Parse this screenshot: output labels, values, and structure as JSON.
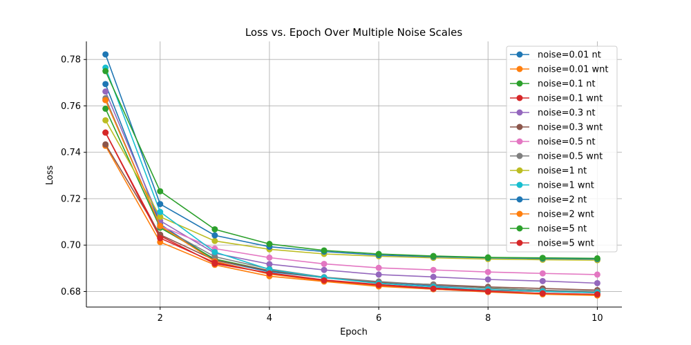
{
  "chart_data": {
    "type": "line",
    "title": "Loss vs. Epoch Over Multiple Noise Scales",
    "xlabel": "Epoch",
    "ylabel": "Loss",
    "xlim": [
      0.65,
      10.45
    ],
    "ylim": [
      0.6733,
      0.7878
    ],
    "xticks": [
      2,
      4,
      6,
      8,
      10
    ],
    "yticks": [
      0.68,
      0.7,
      0.72,
      0.74,
      0.76,
      0.78
    ],
    "ytick_labels": [
      "0.68",
      "0.70",
      "0.72",
      "0.74",
      "0.76",
      "0.78"
    ],
    "grid": true,
    "legend_position": "top-right",
    "x": [
      1,
      2,
      3,
      4,
      5,
      6,
      7,
      8,
      9,
      10
    ],
    "series": [
      {
        "name": "noise=0.01 nt",
        "color": "#1f77b4",
        "values": [
          0.7694,
          0.709,
          0.6935,
          0.6885,
          0.686,
          0.684,
          0.6825,
          0.6815,
          0.6805,
          0.6798
        ]
      },
      {
        "name": "noise=0.01 wnt",
        "color": "#ff7f0e",
        "values": [
          0.7428,
          0.7013,
          0.6915,
          0.6866,
          0.6843,
          0.6822,
          0.681,
          0.68,
          0.6792,
          0.6785
        ]
      },
      {
        "name": "noise=0.1 nt",
        "color": "#2ca02c",
        "values": [
          0.7588,
          0.7075,
          0.694,
          0.689,
          0.686,
          0.684,
          0.683,
          0.6815,
          0.6805,
          0.68
        ]
      },
      {
        "name": "noise=0.1 wnt",
        "color": "#d62728",
        "values": [
          0.7485,
          0.704,
          0.692,
          0.688,
          0.685,
          0.683,
          0.6815,
          0.6805,
          0.68,
          0.6795
        ]
      },
      {
        "name": "noise=0.3 nt",
        "color": "#9467bd",
        "values": [
          0.7662,
          0.7105,
          0.6965,
          0.6918,
          0.6893,
          0.6873,
          0.6863,
          0.6852,
          0.6845,
          0.6836
        ]
      },
      {
        "name": "noise=0.3 wnt",
        "color": "#8c564b",
        "values": [
          0.7434,
          0.7045,
          0.6935,
          0.689,
          0.686,
          0.684,
          0.683,
          0.682,
          0.6813,
          0.6806
        ]
      },
      {
        "name": "noise=0.5 nt",
        "color": "#e377c2",
        "values": [
          0.7625,
          0.7083,
          0.6985,
          0.6946,
          0.6919,
          0.6902,
          0.6893,
          0.6884,
          0.6878,
          0.6873
        ]
      },
      {
        "name": "noise=0.5 wnt",
        "color": "#7f7f7f",
        "values": [
          0.7633,
          0.708,
          0.695,
          0.6897,
          0.6862,
          0.6843,
          0.6828,
          0.6814,
          0.6805,
          0.68
        ]
      },
      {
        "name": "noise=1 nt",
        "color": "#bcbd22",
        "values": [
          0.7538,
          0.7122,
          0.7018,
          0.6982,
          0.6962,
          0.6952,
          0.6945,
          0.694,
          0.6937,
          0.6935
        ]
      },
      {
        "name": "noise=1 wnt",
        "color": "#17becf",
        "values": [
          0.7765,
          0.7143,
          0.697,
          0.6895,
          0.686,
          0.6835,
          0.682,
          0.6808,
          0.68,
          0.6795
        ]
      },
      {
        "name": "noise=2 nt",
        "color": "#1f77b4",
        "values": [
          0.7822,
          0.7177,
          0.7042,
          0.6993,
          0.6972,
          0.6957,
          0.695,
          0.6945,
          0.6942,
          0.694
        ]
      },
      {
        "name": "noise=2 wnt",
        "color": "#ff7f0e",
        "values": [
          0.7625,
          0.7083,
          0.693,
          0.6875,
          0.6845,
          0.6825,
          0.681,
          0.6798,
          0.6788,
          0.6783
        ]
      },
      {
        "name": "noise=5 nt",
        "color": "#2ca02c",
        "values": [
          0.775,
          0.7232,
          0.7068,
          0.7005,
          0.6977,
          0.6962,
          0.6953,
          0.6947,
          0.6945,
          0.6943
        ]
      },
      {
        "name": "noise=5 wnt",
        "color": "#d62728",
        "values": [
          0.7485,
          0.703,
          0.6925,
          0.6878,
          0.6848,
          0.6828,
          0.6812,
          0.68,
          0.6792,
          0.6788
        ]
      }
    ]
  }
}
